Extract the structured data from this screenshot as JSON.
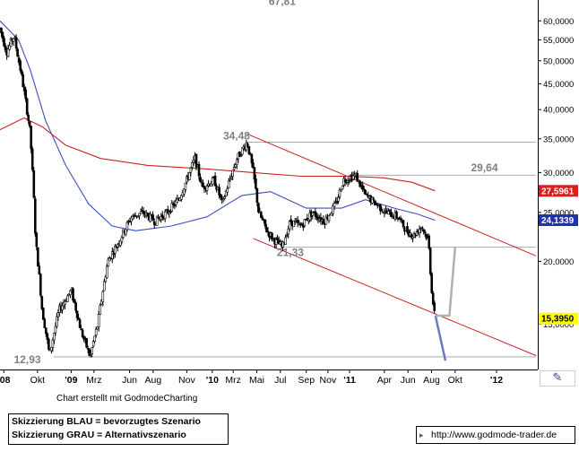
{
  "chart_data": {
    "type": "candlestick",
    "y_scale": "log",
    "ylim": [
      12.2,
      66
    ],
    "y_ticks": [
      "60,0000",
      "55,0000",
      "50,0000",
      "45,0000",
      "40,0000",
      "35,0000",
      "30,0000",
      "25,0000",
      "20,0000",
      "15,0000"
    ],
    "y_tick_values": [
      60,
      55,
      50,
      45,
      40,
      35,
      30,
      25,
      20,
      15
    ],
    "x_axis": {
      "start": "2008-07-15",
      "end": "2012-05-01",
      "labels": [
        {
          "label": "'08",
          "date": "2008-07-25",
          "bold": true
        },
        {
          "label": "Okt",
          "date": "2008-10-20",
          "bold": false
        },
        {
          "label": "'09",
          "date": "2009-01-15",
          "bold": true
        },
        {
          "label": "Mrz",
          "date": "2009-03-15",
          "bold": false
        },
        {
          "label": "Jun",
          "date": "2009-06-15",
          "bold": false
        },
        {
          "label": "Aug",
          "date": "2009-08-15",
          "bold": false
        },
        {
          "label": "Nov",
          "date": "2009-11-10",
          "bold": false
        },
        {
          "label": "'10",
          "date": "2010-01-15",
          "bold": true
        },
        {
          "label": "Mrz",
          "date": "2010-03-10",
          "bold": false
        },
        {
          "label": "Mai",
          "date": "2010-05-10",
          "bold": false
        },
        {
          "label": "Jul",
          "date": "2010-07-10",
          "bold": false
        },
        {
          "label": "Sep",
          "date": "2010-09-15",
          "bold": false
        },
        {
          "label": "Nov",
          "date": "2010-11-10",
          "bold": false
        },
        {
          "label": "'11",
          "date": "2011-01-05",
          "bold": true
        },
        {
          "label": "Apr",
          "date": "2011-04-05",
          "bold": false
        },
        {
          "label": "Jun",
          "date": "2011-06-05",
          "bold": false
        },
        {
          "label": "Aug",
          "date": "2011-08-05",
          "bold": false
        },
        {
          "label": "Okt",
          "date": "2011-10-05",
          "bold": false
        },
        {
          "label": "'12",
          "date": "2012-01-20",
          "bold": true
        }
      ]
    },
    "price_path": [
      [
        "2008-07-15",
        58
      ],
      [
        "2008-08-01",
        52
      ],
      [
        "2008-08-20",
        56
      ],
      [
        "2008-09-10",
        46
      ],
      [
        "2008-10-01",
        36
      ],
      [
        "2008-10-15",
        22
      ],
      [
        "2008-11-01",
        16
      ],
      [
        "2008-11-20",
        13
      ],
      [
        "2008-12-15",
        16
      ],
      [
        "2009-01-15",
        17.5
      ],
      [
        "2009-02-10",
        14.5
      ],
      [
        "2009-03-05",
        12.93
      ],
      [
        "2009-03-25",
        15
      ],
      [
        "2009-04-20",
        20
      ],
      [
        "2009-05-20",
        22
      ],
      [
        "2009-06-20",
        24.5
      ],
      [
        "2009-07-20",
        25
      ],
      [
        "2009-08-20",
        24
      ],
      [
        "2009-09-20",
        25
      ],
      [
        "2009-10-20",
        26.5
      ],
      [
        "2009-11-10",
        29
      ],
      [
        "2009-12-01",
        32
      ],
      [
        "2009-12-20",
        28
      ],
      [
        "2010-01-20",
        29
      ],
      [
        "2010-02-10",
        26
      ],
      [
        "2010-03-01",
        29
      ],
      [
        "2010-03-20",
        32
      ],
      [
        "2010-04-15",
        34.48
      ],
      [
        "2010-05-01",
        30
      ],
      [
        "2010-05-15",
        25
      ],
      [
        "2010-06-05",
        23
      ],
      [
        "2010-06-25",
        22
      ],
      [
        "2010-07-15",
        21.33
      ],
      [
        "2010-08-05",
        24
      ],
      [
        "2010-09-01",
        23.5
      ],
      [
        "2010-10-01",
        25
      ],
      [
        "2010-11-01",
        24
      ],
      [
        "2010-12-01",
        26
      ],
      [
        "2010-12-20",
        29
      ],
      [
        "2011-01-20",
        29.64
      ],
      [
        "2011-02-15",
        27
      ],
      [
        "2011-03-15",
        26
      ],
      [
        "2011-04-10",
        25
      ],
      [
        "2011-05-10",
        24.5
      ],
      [
        "2011-06-01",
        23
      ],
      [
        "2011-06-20",
        22.5
      ],
      [
        "2011-07-10",
        23.5
      ],
      [
        "2011-07-28",
        22
      ],
      [
        "2011-08-04",
        18
      ],
      [
        "2011-08-09",
        16.5
      ],
      [
        "2011-08-14",
        15.39
      ]
    ],
    "series": [
      {
        "name": "",
        "type": "moving_average",
        "color": "#3b4fbf",
        "points": [
          [
            "2008-07-15",
            60
          ],
          [
            "2008-09-01",
            55
          ],
          [
            "2008-10-01",
            48
          ],
          [
            "2008-11-10",
            38
          ],
          [
            "2009-01-01",
            31
          ],
          [
            "2009-03-01",
            26
          ],
          [
            "2009-05-01",
            23.5
          ],
          [
            "2009-07-01",
            23
          ],
          [
            "2009-10-01",
            23.5
          ],
          [
            "2010-01-01",
            24.5
          ],
          [
            "2010-04-01",
            27
          ],
          [
            "2010-06-15",
            27.5
          ],
          [
            "2010-09-15",
            25.5
          ],
          [
            "2010-12-15",
            25.5
          ],
          [
            "2011-02-15",
            26.5
          ],
          [
            "2011-05-01",
            25.5
          ],
          [
            "2011-07-01",
            24.8
          ],
          [
            "2011-08-14",
            24.13
          ]
        ]
      },
      {
        "name": "",
        "type": "moving_average",
        "color": "#cc2222",
        "points": [
          [
            "2008-07-15",
            36.5
          ],
          [
            "2008-09-15",
            38.5
          ],
          [
            "2008-11-01",
            37
          ],
          [
            "2009-01-01",
            34
          ],
          [
            "2009-04-01",
            32
          ],
          [
            "2009-08-01",
            31
          ],
          [
            "2010-01-01",
            30.5
          ],
          [
            "2010-05-01",
            30
          ],
          [
            "2010-09-01",
            29.5
          ],
          [
            "2011-01-01",
            29.5
          ],
          [
            "2011-04-01",
            29.3
          ],
          [
            "2011-06-15",
            28.7
          ],
          [
            "2011-08-14",
            27.6
          ]
        ]
      }
    ],
    "trendlines": [
      {
        "color": "#cc2222",
        "from": [
          "2010-04-15",
          35.8
        ],
        "to": [
          "2012-05-01",
          20.5
        ]
      },
      {
        "color": "#cc2222",
        "from": [
          "2010-05-01",
          22.2
        ],
        "to": [
          "2012-05-01",
          13.0
        ]
      }
    ],
    "horizontal_lines": [
      {
        "value": 34.48,
        "from": "2010-04-15",
        "color": "#aaaaaa"
      },
      {
        "value": 29.64,
        "from": "2011-01-01",
        "color": "#aaaaaa"
      },
      {
        "value": 21.33,
        "from": "2010-07-15",
        "color": "#aaaaaa"
      },
      {
        "value": 12.93,
        "from": "2008-12-01",
        "color": "#aaaaaa"
      }
    ],
    "scenarios": [
      {
        "color": "#6a7ac2",
        "points": [
          [
            "2011-08-15",
            15.6
          ],
          [
            "2011-09-10",
            12.7
          ]
        ]
      },
      {
        "color": "#b0b0b0",
        "points": [
          [
            "2011-08-15",
            15.6
          ],
          [
            "2011-09-20",
            15.6
          ],
          [
            "2011-10-05",
            21.33
          ]
        ]
      }
    ],
    "annotations": [
      {
        "text": "67,81",
        "x": "2010-06-10",
        "y": 64.5,
        "color": "#808080"
      },
      {
        "text": "34,48",
        "x": "2010-02-12",
        "y": 34.9,
        "color": "#808080"
      },
      {
        "text": "29,64",
        "x": "2011-11-15",
        "y": 30.2,
        "color": "#808080"
      },
      {
        "text": "21,33",
        "x": "2010-07-01",
        "y": 20.5,
        "color": "#808080"
      },
      {
        "text": "12,93",
        "x": "2008-08-20",
        "y": 12.55,
        "color": "#808080"
      }
    ],
    "price_tags": [
      {
        "text": "27,5961",
        "value": 27.5961,
        "bg": "#dd1c1c",
        "fg": "#ffffff"
      },
      {
        "text": "24,1339",
        "value": 24.1339,
        "bg": "#2233aa",
        "fg": "#ffffff"
      },
      {
        "text": "15,3950",
        "value": 15.395,
        "bg": "#ffff00",
        "fg": "#000000"
      }
    ]
  },
  "footer": {
    "caption": "Chart erstellt mit GodmodeCharting",
    "legend_line1": "Skizzierung BLAU = bevorzugtes Szenario",
    "legend_line2": "Skizzierung GRAU = Alternativszenario",
    "url": "http://www.godmode-trader.de",
    "nav_icon": "document-arrow-icon",
    "edit_icon": "pencil-icon"
  }
}
